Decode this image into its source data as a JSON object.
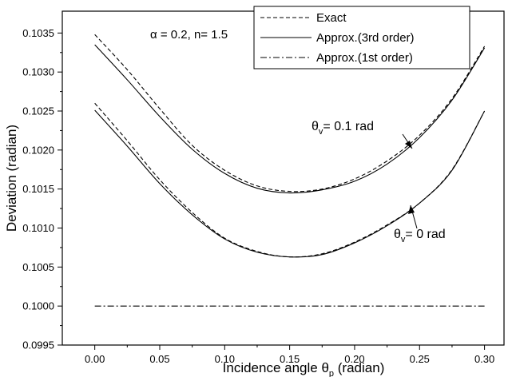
{
  "chart_data": {
    "type": "line",
    "title": "",
    "xlabel_main": "Incidence angle θ",
    "xlabel_sub": "p",
    "xlabel_unit": " (radian)",
    "ylabel": "Deviation (radian)",
    "xlim": [
      -0.025,
      0.315
    ],
    "ylim": [
      0.0995,
      0.10378
    ],
    "xticks": [
      0.0,
      0.05,
      0.1,
      0.15,
      0.2,
      0.25,
      0.3
    ],
    "xtick_labels": [
      "0.00",
      "0.05",
      "0.10",
      "0.15",
      "0.20",
      "0.25",
      "0.30"
    ],
    "yticks": [
      0.0995,
      0.1,
      0.1005,
      0.101,
      0.1015,
      0.102,
      0.1025,
      0.103,
      0.1035
    ],
    "ytick_labels": [
      "0.0995",
      "0.1000",
      "0.1005",
      "0.1010",
      "0.1015",
      "0.1020",
      "0.1025",
      "0.1030",
      "0.1035"
    ],
    "grid": false,
    "legend_position": "top-right",
    "legend": [
      {
        "label": "Exact",
        "style": "dashed"
      },
      {
        "label": "Approx.(3rd order)",
        "style": "solid"
      },
      {
        "label": "Approx.(1st order)",
        "style": "dashdot"
      }
    ],
    "params_label": "α = 0.2, n= 1.5",
    "annotations": [
      {
        "sym": "θ",
        "sub": "v",
        "text": "= 0.1 rad",
        "target_x": 0.25,
        "target_y": 0.10178
      },
      {
        "sym": "θ",
        "sub": "v",
        "text": "= 0 rad",
        "target_x": 0.25,
        "target_y": 0.10132
      }
    ],
    "x": [
      0.0,
      0.025,
      0.05,
      0.075,
      0.1,
      0.125,
      0.15,
      0.175,
      0.2,
      0.225,
      0.25,
      0.275,
      0.3
    ],
    "series": [
      {
        "curve": "theta_v = 0.1 rad",
        "style": "dashed",
        "values": [
          0.10348,
          0.10303,
          0.10253,
          0.10206,
          0.10174,
          0.10154,
          0.10147,
          0.1015,
          0.10163,
          0.10186,
          0.10219,
          0.10266,
          0.10333
        ]
      },
      {
        "curve": "theta_v = 0.1 rad",
        "style": "solid",
        "values": [
          0.10335,
          0.1029,
          0.10243,
          0.10201,
          0.1017,
          0.10151,
          0.10145,
          0.10149,
          0.1016,
          0.10182,
          0.10216,
          0.10264,
          0.10331
        ]
      },
      {
        "curve": "theta_v = 0 rad",
        "style": "dashed",
        "values": [
          0.1026,
          0.10212,
          0.10162,
          0.1012,
          0.10087,
          0.1007,
          0.10063,
          0.10067,
          0.10082,
          0.10104,
          0.10132,
          0.10175,
          0.1025
        ]
      },
      {
        "curve": "theta_v = 0 rad",
        "style": "solid",
        "values": [
          0.10251,
          0.10205,
          0.10157,
          0.10117,
          0.10086,
          0.10069,
          0.10063,
          0.10066,
          0.10081,
          0.10103,
          0.10132,
          0.10174,
          0.1025
        ]
      },
      {
        "curve": "first order",
        "style": "dashdot",
        "values": [
          0.1,
          0.1,
          0.1,
          0.1,
          0.1,
          0.1,
          0.1,
          0.1,
          0.1,
          0.1,
          0.1,
          0.1,
          0.1
        ]
      }
    ]
  }
}
